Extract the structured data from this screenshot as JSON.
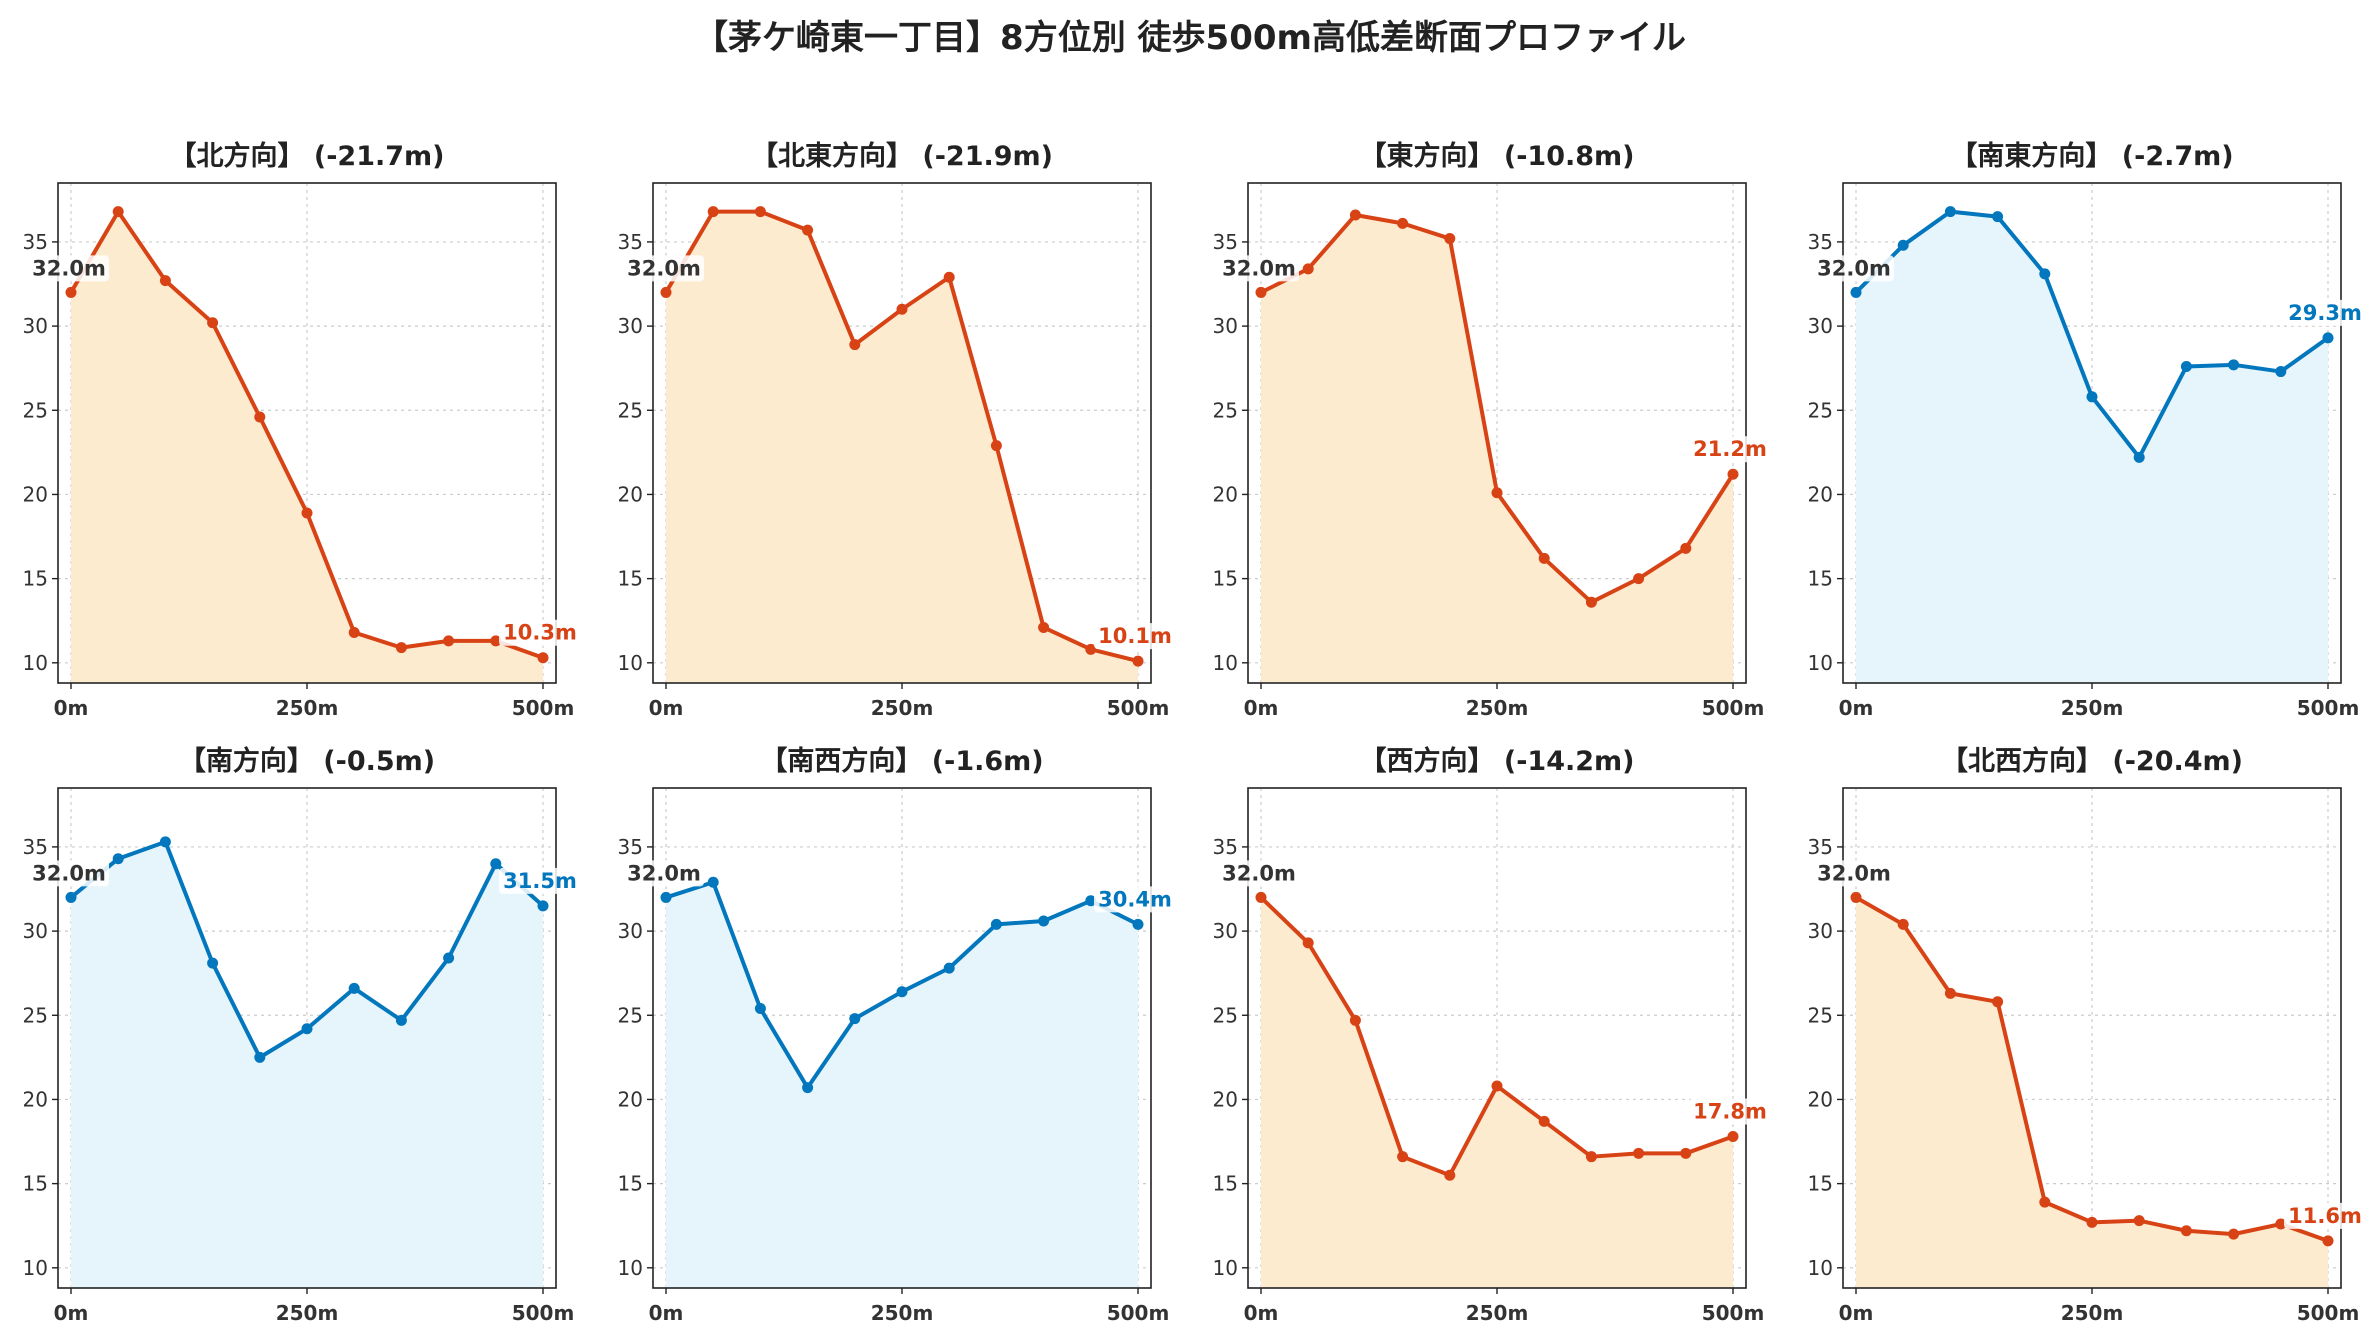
{
  "figure": {
    "title": "【茅ケ崎東一丁目】8方位別 徒歩500m高低差断面プロファイル"
  },
  "colors": {
    "down_line": "#d84315",
    "down_fill": "#fdebd0",
    "up_line": "#0277bd",
    "up_fill": "#e6f5fb",
    "start_label": "#333333",
    "grid": "#cccccc"
  },
  "chart_data": [
    {
      "type": "area",
      "title": "【北方向】 (-21.7m)",
      "trend": "down",
      "x": [
        0,
        50,
        100,
        150,
        200,
        250,
        300,
        350,
        400,
        450,
        500
      ],
      "y": [
        32.0,
        36.8,
        32.7,
        30.2,
        24.6,
        18.9,
        11.8,
        10.9,
        11.3,
        11.3,
        10.3
      ],
      "xticks": [
        "0m",
        "250m",
        "500m"
      ],
      "yticks": [
        10,
        15,
        20,
        25,
        30,
        35
      ],
      "start_label": "32.0m",
      "end_label": "10.3m",
      "xlim": [
        0,
        500
      ],
      "ylim": [
        8.8,
        38.5
      ],
      "grid": true
    },
    {
      "type": "area",
      "title": "【北東方向】 (-21.9m)",
      "trend": "down",
      "x": [
        0,
        50,
        100,
        150,
        200,
        250,
        300,
        350,
        400,
        450,
        500
      ],
      "y": [
        32.0,
        36.8,
        36.8,
        35.7,
        28.9,
        31.0,
        32.9,
        22.9,
        12.1,
        10.8,
        10.1
      ],
      "xticks": [
        "0m",
        "250m",
        "500m"
      ],
      "yticks": [
        10,
        15,
        20,
        25,
        30,
        35
      ],
      "start_label": "32.0m",
      "end_label": "10.1m",
      "xlim": [
        0,
        500
      ],
      "ylim": [
        8.8,
        38.5
      ],
      "grid": true
    },
    {
      "type": "area",
      "title": "【東方向】 (-10.8m)",
      "trend": "down",
      "x": [
        0,
        50,
        100,
        150,
        200,
        250,
        300,
        350,
        400,
        450,
        500
      ],
      "y": [
        32.0,
        33.4,
        36.6,
        36.1,
        35.2,
        20.1,
        16.2,
        13.6,
        15.0,
        16.8,
        21.2
      ],
      "xticks": [
        "0m",
        "250m",
        "500m"
      ],
      "yticks": [
        10,
        15,
        20,
        25,
        30,
        35
      ],
      "start_label": "32.0m",
      "end_label": "21.2m",
      "xlim": [
        0,
        500
      ],
      "ylim": [
        8.8,
        38.5
      ],
      "grid": true
    },
    {
      "type": "area",
      "title": "【南東方向】 (-2.7m)",
      "trend": "up",
      "x": [
        0,
        50,
        100,
        150,
        200,
        250,
        300,
        350,
        400,
        450,
        500
      ],
      "y": [
        32.0,
        34.8,
        36.8,
        36.5,
        33.1,
        25.8,
        22.2,
        27.6,
        27.7,
        27.3,
        29.3
      ],
      "xticks": [
        "0m",
        "250m",
        "500m"
      ],
      "yticks": [
        10,
        15,
        20,
        25,
        30,
        35
      ],
      "start_label": "32.0m",
      "end_label": "29.3m",
      "xlim": [
        0,
        500
      ],
      "ylim": [
        8.8,
        38.5
      ],
      "grid": true
    },
    {
      "type": "area",
      "title": "【南方向】 (-0.5m)",
      "trend": "up",
      "x": [
        0,
        50,
        100,
        150,
        200,
        250,
        300,
        350,
        400,
        450,
        500
      ],
      "y": [
        32.0,
        34.3,
        35.3,
        28.1,
        22.5,
        24.2,
        26.6,
        24.7,
        28.4,
        34.0,
        31.5
      ],
      "xticks": [
        "0m",
        "250m",
        "500m"
      ],
      "yticks": [
        10,
        15,
        20,
        25,
        30,
        35
      ],
      "start_label": "32.0m",
      "end_label": "31.5m",
      "xlim": [
        0,
        500
      ],
      "ylim": [
        8.8,
        38.5
      ],
      "grid": true
    },
    {
      "type": "area",
      "title": "【南西方向】 (-1.6m)",
      "trend": "up",
      "x": [
        0,
        50,
        100,
        150,
        200,
        250,
        300,
        350,
        400,
        450,
        500
      ],
      "y": [
        32.0,
        32.9,
        25.4,
        20.7,
        24.8,
        26.4,
        27.8,
        30.4,
        30.6,
        31.8,
        30.4
      ],
      "xticks": [
        "0m",
        "250m",
        "500m"
      ],
      "yticks": [
        10,
        15,
        20,
        25,
        30,
        35
      ],
      "start_label": "32.0m",
      "end_label": "30.4m",
      "xlim": [
        0,
        500
      ],
      "ylim": [
        8.8,
        38.5
      ],
      "grid": true
    },
    {
      "type": "area",
      "title": "【西方向】 (-14.2m)",
      "trend": "down",
      "x": [
        0,
        50,
        100,
        150,
        200,
        250,
        300,
        350,
        400,
        450,
        500
      ],
      "y": [
        32.0,
        29.3,
        24.7,
        16.6,
        15.5,
        20.8,
        18.7,
        16.6,
        16.8,
        16.8,
        17.8
      ],
      "xticks": [
        "0m",
        "250m",
        "500m"
      ],
      "yticks": [
        10,
        15,
        20,
        25,
        30,
        35
      ],
      "start_label": "32.0m",
      "end_label": "17.8m",
      "xlim": [
        0,
        500
      ],
      "ylim": [
        8.8,
        38.5
      ],
      "grid": true
    },
    {
      "type": "area",
      "title": "【北西方向】 (-20.4m)",
      "trend": "down",
      "x": [
        0,
        50,
        100,
        150,
        200,
        250,
        300,
        350,
        400,
        450,
        500
      ],
      "y": [
        32.0,
        30.4,
        26.3,
        25.8,
        13.9,
        12.7,
        12.8,
        12.2,
        12.0,
        12.6,
        11.6
      ],
      "xticks": [
        "0m",
        "250m",
        "500m"
      ],
      "yticks": [
        10,
        15,
        20,
        25,
        30,
        35
      ],
      "start_label": "32.0m",
      "end_label": "11.6m",
      "xlim": [
        0,
        500
      ],
      "ylim": [
        8.8,
        38.5
      ],
      "grid": true
    }
  ]
}
